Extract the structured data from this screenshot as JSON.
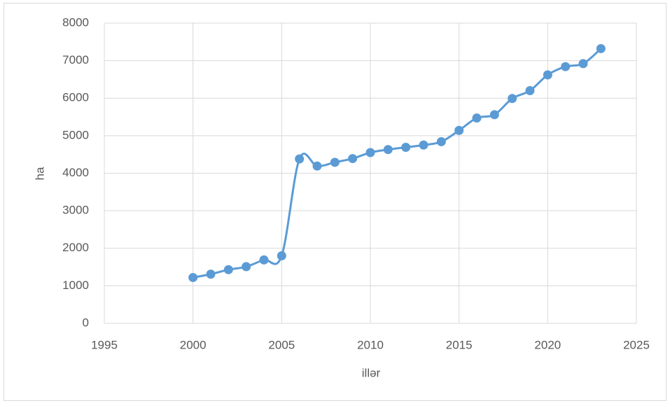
{
  "chart_data": {
    "type": "line",
    "x_label": "illər",
    "y_label": "ha",
    "x": [
      2000,
      2001,
      2002,
      2003,
      2004,
      2005,
      2006,
      2007,
      2008,
      2009,
      2010,
      2011,
      2012,
      2013,
      2014,
      2015,
      2016,
      2017,
      2018,
      2019,
      2020,
      2021,
      2022,
      2023
    ],
    "series": [
      {
        "color": "#5b9bd5",
        "values": [
          1220,
          1310,
          1430,
          1510,
          1690,
          1800,
          4380,
          4190,
          4290,
          4390,
          4550,
          4630,
          4690,
          4750,
          4840,
          5140,
          5470,
          5560,
          5990,
          6200,
          6620,
          6840,
          6920,
          7320
        ]
      }
    ],
    "xlim": [
      1995,
      2025
    ],
    "xticks": [
      1995,
      2000,
      2005,
      2010,
      2015,
      2020,
      2025
    ],
    "ylim": [
      0,
      8000
    ],
    "yticks": [
      0,
      1000,
      2000,
      3000,
      4000,
      5000,
      6000,
      7000,
      8000
    ],
    "grid": true,
    "smooth": true
  }
}
